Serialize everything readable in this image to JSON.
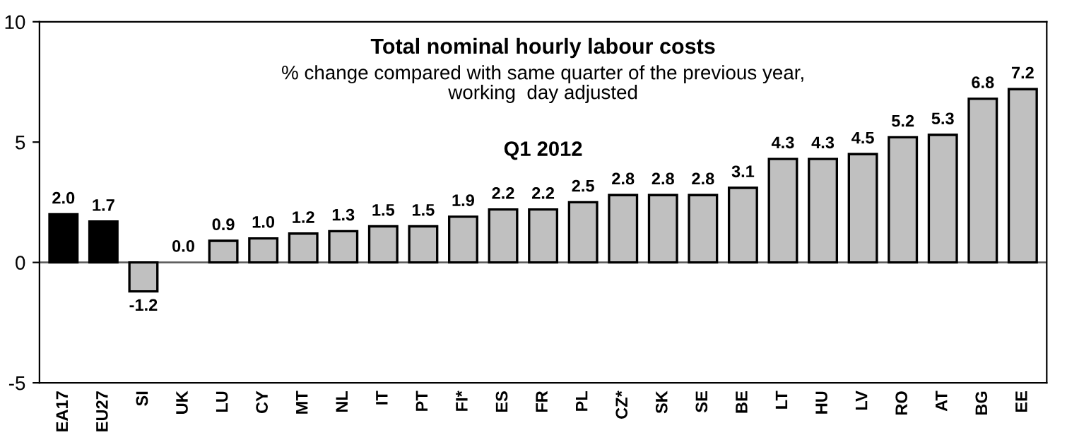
{
  "chart_data": {
    "type": "bar",
    "title": "Total nominal hourly labour costs",
    "subtitle": "% change compared with same quarter of the previous year,\nworking  day adjusted",
    "annotations": [
      "Q1 2012"
    ],
    "categories": [
      "EA17",
      "EU27",
      "SI",
      "UK",
      "LU",
      "CY",
      "MT",
      "NL",
      "IT",
      "PT",
      "FI*",
      "ES",
      "FR",
      "PL",
      "CZ*",
      "SK",
      "SE",
      "BE",
      "LT",
      "HU",
      "LV",
      "RO",
      "AT",
      "BG",
      "EE"
    ],
    "values": [
      2.0,
      1.7,
      -1.2,
      0.0,
      0.9,
      1.0,
      1.2,
      1.3,
      1.5,
      1.5,
      1.9,
      2.2,
      2.2,
      2.5,
      2.8,
      2.8,
      2.8,
      3.1,
      4.3,
      4.3,
      4.5,
      5.2,
      5.3,
      6.8,
      7.2
    ],
    "value_labels": [
      "2.0",
      "1.7",
      "-1.2",
      "0.0",
      "0.9",
      "1.0",
      "1.2",
      "1.3",
      "1.5",
      "1.5",
      "1.9",
      "2.2",
      "2.2",
      "2.5",
      "2.8",
      "2.8",
      "2.8",
      "3.1",
      "4.3",
      "4.3",
      "4.5",
      "5.2",
      "5.3",
      "6.8",
      "7.2"
    ],
    "colors": [
      "#000000",
      "#000000",
      "#c0c0c0",
      "#c0c0c0",
      "#c0c0c0",
      "#c0c0c0",
      "#c0c0c0",
      "#c0c0c0",
      "#c0c0c0",
      "#c0c0c0",
      "#c0c0c0",
      "#c0c0c0",
      "#c0c0c0",
      "#c0c0c0",
      "#c0c0c0",
      "#c0c0c0",
      "#c0c0c0",
      "#c0c0c0",
      "#c0c0c0",
      "#c0c0c0",
      "#c0c0c0",
      "#c0c0c0",
      "#c0c0c0",
      "#c0c0c0",
      "#c0c0c0"
    ],
    "ylim": [
      -5,
      10
    ],
    "yticks": [
      -5,
      0,
      5,
      10
    ],
    "ref_lines": [
      {
        "axis": "y",
        "value": 0,
        "color": "#606060"
      }
    ],
    "grid": false,
    "legend": false
  }
}
